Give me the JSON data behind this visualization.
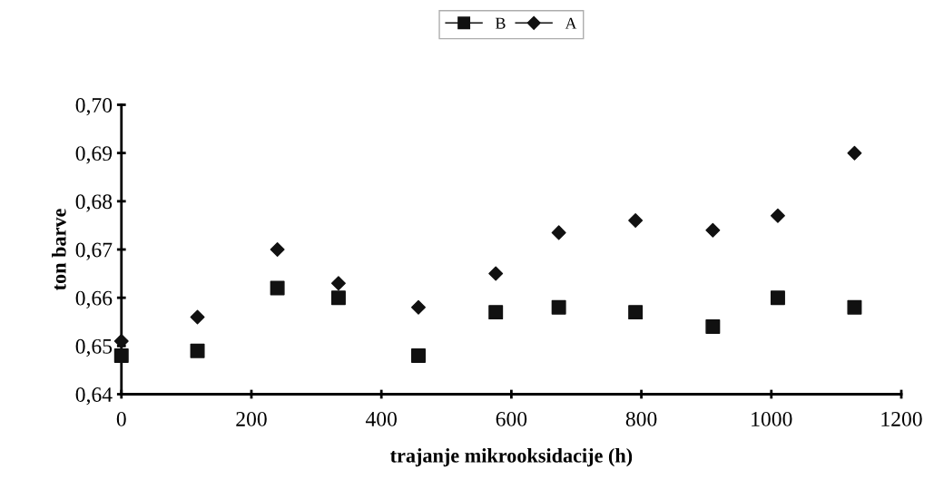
{
  "chart_data": {
    "type": "scatter",
    "xlabel": "trajanje mikrooksidacije (h)",
    "ylabel": "ton barve",
    "xlim": [
      0,
      1200
    ],
    "xticks": [
      0,
      200,
      400,
      600,
      800,
      1000,
      1200
    ],
    "ylim": [
      0.64,
      0.7
    ],
    "yticks": [
      {
        "value": 0.64,
        "label": "0,64"
      },
      {
        "value": 0.65,
        "label": "0,65"
      },
      {
        "value": 0.66,
        "label": "0,66"
      },
      {
        "value": 0.67,
        "label": "0,67"
      },
      {
        "value": 0.68,
        "label": "0,68"
      },
      {
        "value": 0.69,
        "label": "0,69"
      },
      {
        "value": 0.7,
        "label": "0,70"
      }
    ],
    "x": [
      0,
      117,
      240,
      334,
      457,
      576,
      673,
      791,
      910,
      1010,
      1128
    ],
    "series": [
      {
        "name": "B",
        "color": "#111111",
        "marker": "square",
        "values": [
          0.648,
          0.649,
          0.662,
          0.66,
          0.648,
          0.657,
          0.658,
          0.657,
          0.654,
          0.66,
          0.658
        ]
      },
      {
        "name": "A",
        "color": "#111111",
        "marker": "diamond",
        "values": [
          0.651,
          0.656,
          0.67,
          0.663,
          0.658,
          0.665,
          0.6735,
          0.676,
          0.674,
          0.677,
          0.69
        ]
      }
    ],
    "grid": false,
    "legend": "top"
  }
}
